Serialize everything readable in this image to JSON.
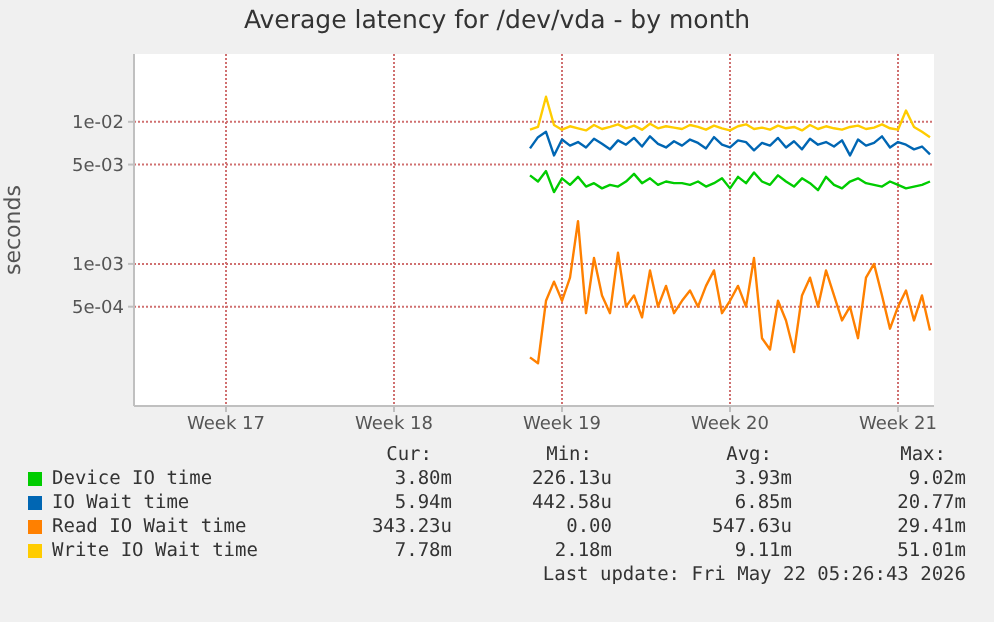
{
  "chart_data": {
    "type": "line",
    "title": "Average latency for /dev/vda - by month",
    "ylabel": "seconds",
    "log": "y",
    "grid": true,
    "legend": "bottom",
    "marker": "none",
    "line_style": "solid",
    "categories": [
      null,
      null,
      null,
      null,
      null,
      null,
      null,
      null,
      null,
      null,
      null,
      "Week 17",
      null,
      null,
      null,
      null,
      null,
      null,
      null,
      null,
      null,
      null,
      null,
      null,
      null,
      null,
      null,
      null,
      null,
      null,
      null,
      null,
      "Week 18",
      null,
      null,
      null,
      null,
      null,
      null,
      null,
      null,
      null,
      null,
      null,
      null,
      null,
      null,
      null,
      null,
      null,
      null,
      null,
      null,
      "Week 19",
      null,
      null,
      null,
      null,
      null,
      null,
      null,
      null,
      null,
      null,
      null,
      null,
      null,
      null,
      null,
      null,
      null,
      null,
      null,
      null,
      "Week 20",
      null,
      null,
      null,
      null,
      null,
      null,
      null,
      null,
      null,
      null,
      null,
      null,
      null,
      null,
      null,
      null,
      null,
      null,
      null,
      null,
      "Week 21",
      null,
      null,
      null,
      null
    ],
    "ylim": [
      0.0001,
      0.03
    ],
    "yticks": [
      {
        "value": 0.0005,
        "label": "5e-04"
      },
      {
        "value": 0.001,
        "label": "1e-03"
      },
      {
        "value": 0.005,
        "label": "5e-03"
      },
      {
        "value": 0.01,
        "label": "1e-02"
      }
    ],
    "series": [
      {
        "name": "Device IO time",
        "color": "#00cc00",
        "values": [
          null,
          null,
          null,
          null,
          null,
          null,
          null,
          null,
          null,
          null,
          null,
          null,
          null,
          null,
          null,
          null,
          null,
          null,
          null,
          null,
          null,
          null,
          null,
          null,
          null,
          null,
          null,
          null,
          null,
          null,
          null,
          null,
          null,
          null,
          null,
          null,
          null,
          null,
          null,
          null,
          null,
          null,
          null,
          null,
          null,
          null,
          null,
          null,
          null,
          0.0042,
          0.0038,
          0.0045,
          0.0032,
          0.004,
          0.0036,
          0.0041,
          0.0035,
          0.0037,
          0.0034,
          0.0036,
          0.0035,
          0.0038,
          0.0043,
          0.0037,
          0.004,
          0.0036,
          0.0038,
          0.0037,
          0.0037,
          0.0036,
          0.0038,
          0.0035,
          0.0037,
          0.004,
          0.0034,
          0.0041,
          0.0037,
          0.0044,
          0.0038,
          0.0036,
          0.0042,
          0.0038,
          0.0035,
          0.004,
          0.0037,
          0.0033,
          0.0041,
          0.0036,
          0.0034,
          0.0038,
          0.004,
          0.0037,
          0.0036,
          0.0035,
          0.0038,
          0.0036,
          0.0034,
          0.0035,
          0.0036,
          0.0038
        ]
      },
      {
        "name": "IO Wait time",
        "color": "#0066b3",
        "values": [
          null,
          null,
          null,
          null,
          null,
          null,
          null,
          null,
          null,
          null,
          null,
          null,
          null,
          null,
          null,
          null,
          null,
          null,
          null,
          null,
          null,
          null,
          null,
          null,
          null,
          null,
          null,
          null,
          null,
          null,
          null,
          null,
          null,
          null,
          null,
          null,
          null,
          null,
          null,
          null,
          null,
          null,
          null,
          null,
          null,
          null,
          null,
          null,
          null,
          0.0065,
          0.0078,
          0.0085,
          0.0058,
          0.0075,
          0.0068,
          0.0072,
          0.0066,
          0.0076,
          0.007,
          0.0064,
          0.0074,
          0.0069,
          0.0077,
          0.0067,
          0.0079,
          0.007,
          0.0066,
          0.0073,
          0.0068,
          0.0075,
          0.0071,
          0.0065,
          0.0078,
          0.0069,
          0.0066,
          0.0074,
          0.0072,
          0.0063,
          0.0071,
          0.0068,
          0.0077,
          0.0066,
          0.0073,
          0.0064,
          0.0076,
          0.0069,
          0.0072,
          0.0067,
          0.0074,
          0.0058,
          0.0075,
          0.0068,
          0.0071,
          0.0079,
          0.0066,
          0.0072,
          0.0069,
          0.0064,
          0.0067,
          0.0059
        ]
      },
      {
        "name": "Read IO Wait time",
        "color": "#ff8000",
        "values": [
          null,
          null,
          null,
          null,
          null,
          null,
          null,
          null,
          null,
          null,
          null,
          null,
          null,
          null,
          null,
          null,
          null,
          null,
          null,
          null,
          null,
          null,
          null,
          null,
          null,
          null,
          null,
          null,
          null,
          null,
          null,
          null,
          null,
          null,
          null,
          null,
          null,
          null,
          null,
          null,
          null,
          null,
          null,
          null,
          null,
          null,
          null,
          null,
          null,
          0.00022,
          0.0002,
          0.00055,
          0.00075,
          0.00055,
          0.0008,
          0.002,
          0.00045,
          0.0011,
          0.0006,
          0.00045,
          0.0012,
          0.0005,
          0.0006,
          0.00042,
          0.0009,
          0.0005,
          0.0007,
          0.00045,
          0.00055,
          0.00065,
          0.0005,
          0.0007,
          0.0009,
          0.00045,
          0.00055,
          0.0007,
          0.0005,
          0.0011,
          0.0003,
          0.00025,
          0.00055,
          0.0004,
          0.00024,
          0.0006,
          0.0008,
          0.0005,
          0.0009,
          0.0006,
          0.0004,
          0.0005,
          0.0003,
          0.0008,
          0.001,
          0.0006,
          0.00035,
          0.0005,
          0.00065,
          0.0004,
          0.0006,
          0.00034
        ]
      },
      {
        "name": "Write IO Wait time",
        "color": "#ffcc00",
        "values": [
          null,
          null,
          null,
          null,
          null,
          null,
          null,
          null,
          null,
          null,
          null,
          null,
          null,
          null,
          null,
          null,
          null,
          null,
          null,
          null,
          null,
          null,
          null,
          null,
          null,
          null,
          null,
          null,
          null,
          null,
          null,
          null,
          null,
          null,
          null,
          null,
          null,
          null,
          null,
          null,
          null,
          null,
          null,
          null,
          null,
          null,
          null,
          null,
          null,
          0.0088,
          0.0092,
          0.015,
          0.0095,
          0.0088,
          0.0093,
          0.009,
          0.0087,
          0.0095,
          0.0089,
          0.0092,
          0.0096,
          0.009,
          0.0094,
          0.0088,
          0.0097,
          0.009,
          0.0093,
          0.0091,
          0.0089,
          0.0095,
          0.0092,
          0.0088,
          0.0094,
          0.009,
          0.0087,
          0.0093,
          0.0096,
          0.0089,
          0.0091,
          0.0088,
          0.0094,
          0.009,
          0.0092,
          0.0087,
          0.0095,
          0.0089,
          0.0093,
          0.009,
          0.0088,
          0.0092,
          0.0094,
          0.0089,
          0.0091,
          0.0096,
          0.009,
          0.0088,
          0.012,
          0.0092,
          0.0085,
          0.0078
        ]
      }
    ],
    "annotations": [
      "Cur:",
      "Min:",
      "Avg:",
      "Max:",
      "3.80m",
      "226.13u",
      "3.93m",
      "9.02m",
      "5.94m",
      "442.58u",
      "6.85m",
      "20.77m",
      "343.23u",
      "0.00",
      "547.63u",
      "29.41m",
      "7.78m",
      "2.18m",
      "9.11m",
      "51.01m",
      "Last update: Fri May 22 05:26:43 2026"
    ]
  }
}
